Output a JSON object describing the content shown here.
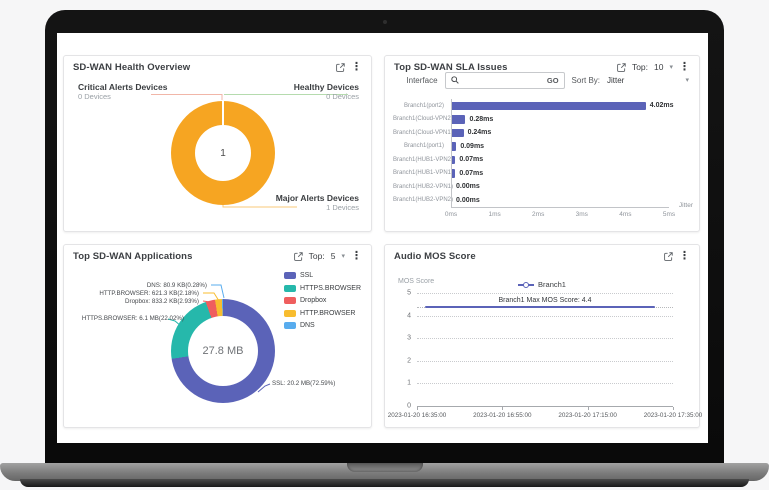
{
  "panels": {
    "sla": {
      "top_label": "Top:",
      "top_value": "10",
      "interface_label": "Interface",
      "search_value": "",
      "go_label": "GO",
      "sort_by_label": "Sort By:",
      "sort_value": "Jitter"
    },
    "apps": {
      "top_label": "Top:",
      "top_value": "5"
    }
  },
  "chart_data": [
    {
      "id": "health-donut",
      "type": "pie",
      "title": "SD-WAN Health Overview",
      "center_label": "1",
      "ring_color": "#f6a522",
      "slices": [
        {
          "label": "Critical Alerts Devices",
          "count_label": "0 Devices",
          "value": 0,
          "color": "#e57a61"
        },
        {
          "label": "Healthy Devices",
          "count_label": "0 Devices",
          "value": 0,
          "color": "#9ccf93"
        },
        {
          "label": "Major Alerts Devices",
          "count_label": "1 Devices",
          "value": 1,
          "color": "#f6a522"
        }
      ]
    },
    {
      "id": "sla-bars",
      "type": "bar",
      "orientation": "horizontal",
      "title": "Top SD-WAN SLA Issues",
      "xlabel": "Jitter",
      "xlim": [
        0,
        5
      ],
      "x_ticks": [
        "0ms",
        "1ms",
        "2ms",
        "3ms",
        "4ms",
        "5ms"
      ],
      "bar_color": "#5b63b8",
      "categories": [
        "Branch1(port2)",
        "Branch1(Cloud-VPN2)",
        "Branch1(Cloud-VPN1)",
        "Branch1(port1)",
        "Branch1(HUB1-VPN2)",
        "Branch1(HUB1-VPN1)",
        "Branch1(HUB2-VPN1)",
        "Branch1(HUB2-VPN2)"
      ],
      "values": [
        4.02,
        0.28,
        0.24,
        0.09,
        0.07,
        0.07,
        0,
        0
      ],
      "value_labels": [
        "4.02ms",
        "0.28ms",
        "0.24ms",
        "0.09ms",
        "0.07ms",
        "0.07ms",
        "0.00ms",
        "0.00ms"
      ]
    },
    {
      "id": "apps-donut",
      "type": "pie",
      "title": "Top SD-WAN Applications",
      "center_label": "27.8 MB",
      "slices": [
        {
          "label": "SSL",
          "pct": 72.59,
          "callout": "SSL: 20.2 MB(72.59%)",
          "color": "#5b63b8"
        },
        {
          "label": "HTTPS.BROWSER",
          "pct": 22.02,
          "callout": "HTTPS.BROWSER: 6.1 MB(22.02%)",
          "color": "#26b8ab"
        },
        {
          "label": "Dropbox",
          "pct": 2.93,
          "callout": "Dropbox: 833.2 KB(2.93%)",
          "color": "#ef5e5e"
        },
        {
          "label": "HTTP.BROWSER",
          "pct": 2.18,
          "callout": "HTTP.BROWSER: 621.3 KB(2.18%)",
          "color": "#f8bd2f"
        },
        {
          "label": "DNS",
          "pct": 0.28,
          "callout": "DNS: 80.9 KB(0.28%)",
          "color": "#58acee"
        }
      ]
    },
    {
      "id": "mos-line",
      "type": "line",
      "title": "Audio MOS Score",
      "ylabel": "MOS Score",
      "ylim": [
        0,
        5
      ],
      "y_ticks": [
        5,
        4,
        3,
        2,
        1,
        0
      ],
      "grid": "dotted",
      "legend_position": "top-center",
      "series": [
        {
          "name": "Branch1",
          "value": 4.4,
          "color": "#5b63b8"
        }
      ],
      "annotation": "Branch1 Max MOS Score: 4.4",
      "x_labels": [
        "2023-01-20 16:35:00",
        "2023-01-20 16:55:00",
        "2023-01-20 17:15:00",
        "2023-01-20 17:35:00"
      ]
    }
  ]
}
